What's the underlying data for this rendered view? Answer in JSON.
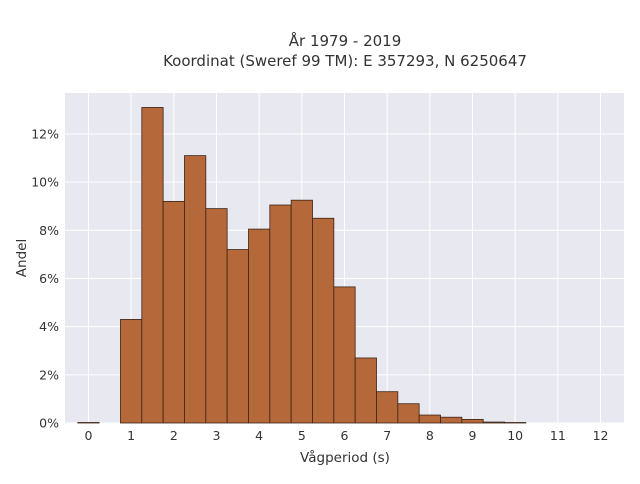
{
  "chart_data": {
    "type": "bar",
    "title_lines": [
      "År 1979 - 2019",
      "Koordinat (Sweref 99 TM): E 357293, N 6250647"
    ],
    "xlabel": "Vågperiod (s)",
    "ylabel": "Andel",
    "xlim": [
      -0.55,
      12.55
    ],
    "ylim": [
      0,
      13.7
    ],
    "x_ticks": [
      0,
      1,
      2,
      3,
      4,
      5,
      6,
      7,
      8,
      9,
      10,
      11,
      12
    ],
    "x_tick_labels": [
      "0",
      "1",
      "2",
      "3",
      "4",
      "5",
      "6",
      "7",
      "8",
      "9",
      "10",
      "11",
      "12"
    ],
    "y_ticks": [
      0,
      2,
      4,
      6,
      8,
      10,
      12
    ],
    "y_tick_labels": [
      "0%",
      "2%",
      "4%",
      "6%",
      "8%",
      "10%",
      "12%"
    ],
    "grid": true,
    "bar_width": 0.5,
    "bars": [
      {
        "x": 0.0,
        "value": 0.02
      },
      {
        "x": 1.0,
        "value": 4.3
      },
      {
        "x": 1.5,
        "value": 13.1
      },
      {
        "x": 2.0,
        "value": 9.2
      },
      {
        "x": 2.5,
        "value": 11.1
      },
      {
        "x": 3.0,
        "value": 8.9
      },
      {
        "x": 3.5,
        "value": 7.2
      },
      {
        "x": 4.0,
        "value": 8.05
      },
      {
        "x": 4.5,
        "value": 9.05
      },
      {
        "x": 5.0,
        "value": 9.25
      },
      {
        "x": 5.5,
        "value": 8.5
      },
      {
        "x": 6.0,
        "value": 5.65
      },
      {
        "x": 6.5,
        "value": 2.7
      },
      {
        "x": 7.0,
        "value": 1.3
      },
      {
        "x": 7.5,
        "value": 0.8
      },
      {
        "x": 8.0,
        "value": 0.33
      },
      {
        "x": 8.5,
        "value": 0.24
      },
      {
        "x": 9.0,
        "value": 0.15
      },
      {
        "x": 9.5,
        "value": 0.04
      },
      {
        "x": 10.0,
        "value": 0.02
      }
    ],
    "colors": {
      "bar_fill": "#b5683a",
      "bar_edge": "#3d2416",
      "plot_bg": "#e8e8f0",
      "grid": "#ffffff"
    }
  }
}
